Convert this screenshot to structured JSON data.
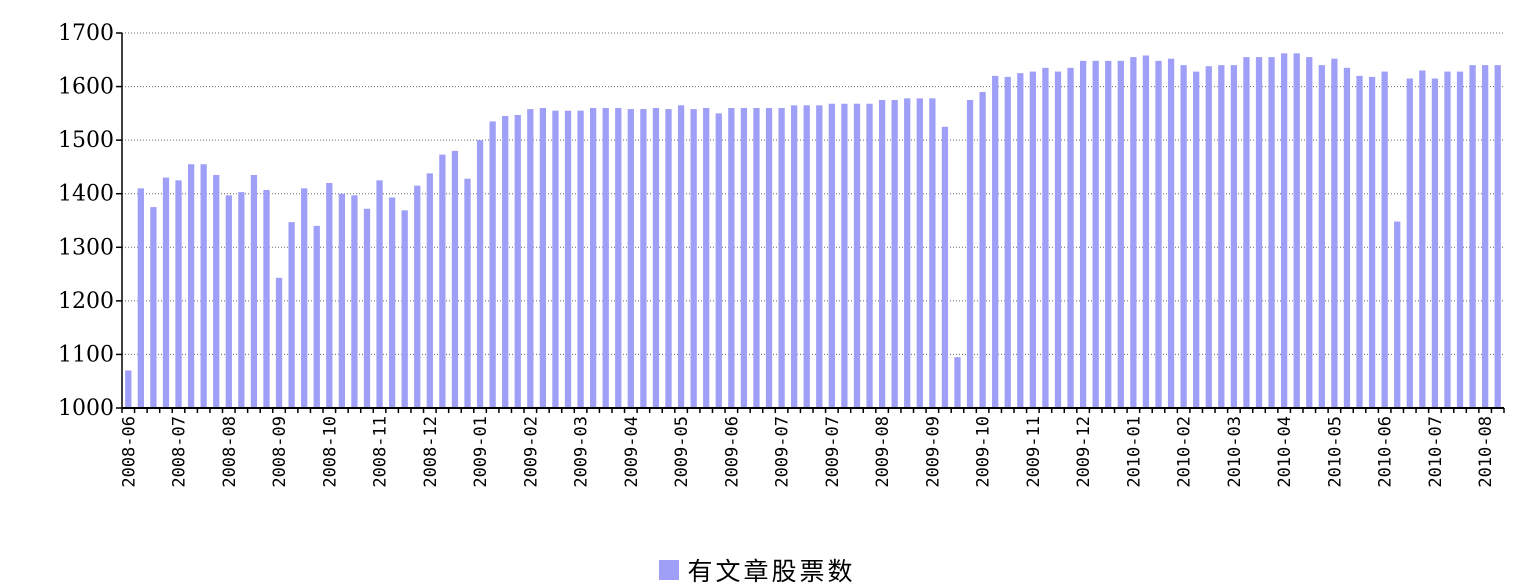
{
  "chart_data": {
    "type": "bar",
    "title": "",
    "xlabel": "",
    "ylabel": "",
    "ylim": [
      1000,
      1700
    ],
    "yticks": [
      1000,
      1100,
      1200,
      1300,
      1400,
      1500,
      1600,
      1700
    ],
    "grid": "horizontal-dotted",
    "legend_position": "bottom-center",
    "bar_color": "#9f9ff7",
    "tick_labels": [
      "2008-06",
      "2008-07",
      "2008-08",
      "2008-09",
      "2008-10",
      "2008-11",
      "2008-12",
      "2009-01",
      "2009-02",
      "2009-03",
      "2009-04",
      "2009-05",
      "2009-06",
      "2009-07",
      "2009-07",
      "2009-08",
      "2009-09",
      "2009-10",
      "2009-11",
      "2009-12",
      "2010-01",
      "2010-02",
      "2010-03",
      "2010-04",
      "2010-05",
      "2010-06",
      "2010-07",
      "2010-08"
    ],
    "series": [
      {
        "name": "有文章股票数",
        "values": [
          1070,
          1410,
          1375,
          1430,
          1425,
          1455,
          1455,
          1435,
          1397,
          1403,
          1435,
          1407,
          1243,
          1347,
          1410,
          1340,
          1420,
          1400,
          1397,
          1372,
          1425,
          1393,
          1369,
          1415,
          1438,
          1473,
          1480,
          1428,
          1500,
          1535,
          1545,
          1547,
          1558,
          1560,
          1555,
          1555,
          1555,
          1560,
          1560,
          1560,
          1558,
          1558,
          1560,
          1558,
          1565,
          1558,
          1560,
          1550,
          1560,
          1560,
          1560,
          1560,
          1560,
          1565,
          1565,
          1565,
          1568,
          1568,
          1568,
          1568,
          1575,
          1575,
          1578,
          1578,
          1578,
          1525,
          1095,
          1575,
          1590,
          1620,
          1618,
          1625,
          1628,
          1635,
          1628,
          1635,
          1648,
          1648,
          1648,
          1648,
          1655,
          1658,
          1648,
          1652,
          1640,
          1628,
          1638,
          1640,
          1640,
          1655,
          1655,
          1655,
          1662,
          1662,
          1655,
          1640,
          1652,
          1635,
          1620,
          1618,
          1628,
          1348,
          1615,
          1630,
          1615,
          1628,
          1628,
          1640,
          1640,
          1640
        ]
      }
    ]
  }
}
